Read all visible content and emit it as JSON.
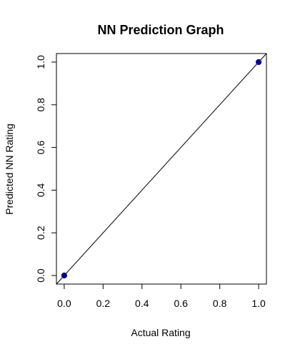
{
  "chart_data": {
    "type": "scatter",
    "title": "NN Prediction Graph",
    "xlabel": "Actual Rating",
    "ylabel": "Predicted NN Rating",
    "xlim": [
      -0.04,
      1.04
    ],
    "ylim": [
      -0.04,
      1.04
    ],
    "xticks": [
      0.0,
      0.2,
      0.4,
      0.6,
      0.8,
      1.0
    ],
    "yticks": [
      0.0,
      0.2,
      0.4,
      0.6,
      0.8,
      1.0
    ],
    "xtick_labels": [
      "0.0",
      "0.2",
      "0.4",
      "0.6",
      "0.8",
      "1.0"
    ],
    "ytick_labels": [
      "0.0",
      "0.2",
      "0.4",
      "0.6",
      "0.8",
      "1.0"
    ],
    "points": [
      {
        "x": 0.0,
        "y": 0.0
      },
      {
        "x": 1.0,
        "y": 1.0
      }
    ],
    "reference_line": {
      "intercept": 0,
      "slope": 1
    },
    "point_color": "#00008B",
    "line_color": "#000000",
    "grid": false
  }
}
